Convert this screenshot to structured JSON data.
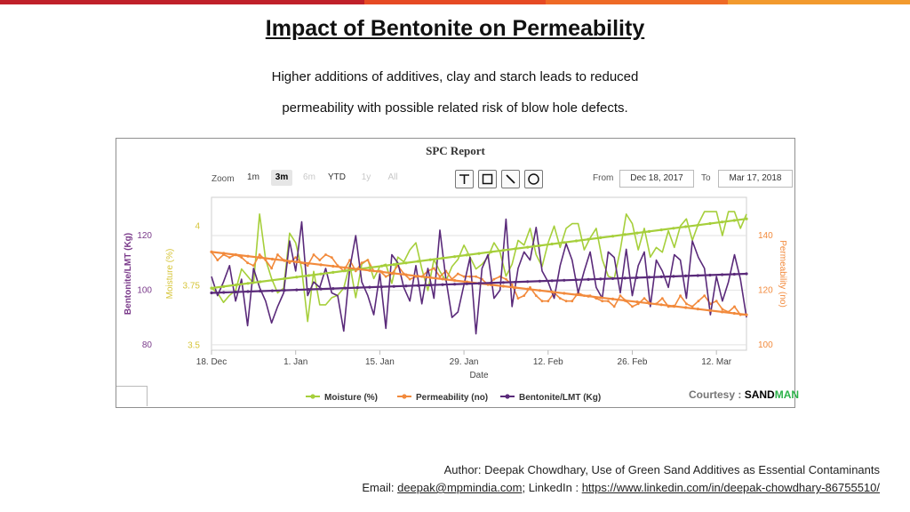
{
  "slide": {
    "title": "Impact of Bentonite on Permeability",
    "subtitle_line1": "Higher additions of additives, clay and starch leads to reduced",
    "subtitle_line2": "permeability with possible related risk of blow hole defects.",
    "courtesy_label": "Courtesy :",
    "courtesy_brand_a": "SAND",
    "courtesy_brand_b": "MAN",
    "author_line": "Author: Deepak Chowdhary, Use of Green Sand Additives as Essential Contaminants",
    "email_label": "Email: ",
    "email": "deepak@mpmindia.com",
    "linkedin_label": "; LinkedIn : ",
    "linkedin_url": "https://www.linkedin.com/in/deepak-chowdhary-86755510/",
    "colors": {
      "moisture": "#a6cf3b",
      "permeability": "#f28a3c",
      "bentonite": "#5a2a7a",
      "bentonite_axis": "#7a3a8a",
      "moisture_axis": "#d6c53a",
      "permeability_axis": "#f28a3c"
    }
  },
  "controls": {
    "zoom_label": "Zoom",
    "zoom_options": [
      "1m",
      "3m",
      "6m",
      "YTD",
      "1y",
      "All"
    ],
    "zoom_selected": "3m",
    "tools": [
      "line-tool-icon",
      "rectangle-tool-icon",
      "diagonal-line-icon",
      "circle-tool-icon"
    ],
    "from_label": "From",
    "from_value": "Dec 18, 2017",
    "to_label": "To",
    "to_value": "Mar 17, 2018"
  },
  "chart_data": {
    "type": "line",
    "title": "SPC Report",
    "xlabel": "Date",
    "x_ticks": [
      "18. Dec",
      "1. Jan",
      "15. Jan",
      "29. Jan",
      "12. Feb",
      "26. Feb",
      "12. Mar"
    ],
    "x_range_days": [
      0,
      89
    ],
    "legend": [
      "Moisture (%)",
      "Permeability (no)",
      "Bentonite/LMT (Kg)"
    ],
    "legend_position": "bottom-center",
    "axes": {
      "bentonite": {
        "label": "Bentonite/LMT (Kg)",
        "ticks": [
          80,
          100,
          120
        ],
        "range": [
          78,
          134
        ],
        "side": "left-outer"
      },
      "moisture": {
        "label": "Moisture (%)",
        "ticks": [
          "3.5",
          "3.75",
          "4"
        ],
        "range": [
          3.48,
          4.12
        ],
        "side": "left-inner"
      },
      "permeability": {
        "label": "Permeability (no)",
        "ticks": [
          100,
          120,
          140
        ],
        "range": [
          98,
          154
        ],
        "side": "right"
      }
    },
    "series": [
      {
        "name": "Moisture (%)",
        "axis": "moisture",
        "values": [
          3.74,
          3.72,
          3.68,
          3.71,
          3.73,
          3.82,
          3.79,
          3.76,
          4.05,
          3.86,
          3.78,
          3.72,
          3.74,
          3.97,
          3.93,
          3.82,
          3.6,
          3.81,
          3.67,
          3.67,
          3.7,
          3.71,
          3.74,
          3.84,
          3.7,
          3.84,
          3.86,
          3.78,
          3.83,
          3.84,
          3.76,
          3.87,
          3.85,
          3.9,
          3.93,
          3.82,
          3.73,
          3.86,
          3.81,
          3.77,
          3.83,
          3.86,
          3.92,
          3.87,
          3.82,
          3.84,
          3.87,
          3.93,
          3.89,
          3.79,
          3.84,
          3.94,
          3.92,
          3.99,
          3.88,
          3.83,
          3.93,
          4.0,
          3.91,
          3.99,
          4.01,
          4.01,
          3.9,
          3.95,
          3.99,
          3.86,
          3.79,
          3.78,
          3.9,
          4.05,
          4.01,
          3.9,
          3.99,
          3.87,
          3.91,
          3.89,
          3.98,
          3.91,
          4.0,
          4.03,
          3.94,
          4.01,
          4.06,
          4.06,
          4.06,
          3.96,
          4.06,
          4.06,
          3.99,
          4.05
        ]
      },
      {
        "name": "Permeability (no)",
        "axis": "permeability",
        "values": [
          134,
          131,
          133,
          132,
          133,
          132,
          130,
          129,
          133,
          131,
          128,
          133,
          131,
          130,
          132,
          130,
          129,
          133,
          131,
          133,
          132,
          129,
          127,
          131,
          127,
          130,
          131,
          127,
          127,
          125,
          126,
          129,
          126,
          124,
          125,
          125,
          127,
          128,
          125,
          127,
          124,
          126,
          125,
          125,
          125,
          124,
          122,
          124,
          125,
          124,
          122,
          117,
          118,
          121,
          118,
          116,
          116,
          119,
          117,
          116,
          116,
          119,
          118,
          118,
          117,
          116,
          116,
          114,
          118,
          116,
          114,
          115,
          117,
          115,
          115,
          117,
          114,
          114,
          118,
          115,
          114,
          116,
          118,
          115,
          116,
          113,
          112,
          114,
          111,
          111
        ]
      },
      {
        "name": "Bentonite/LMT (Kg)",
        "axis": "bentonite",
        "values": [
          105,
          98,
          103,
          109,
          96,
          104,
          87,
          108,
          101,
          96,
          88,
          94,
          99,
          118,
          107,
          125,
          98,
          103,
          101,
          108,
          99,
          98,
          85,
          108,
          120,
          103,
          98,
          91,
          106,
          86,
          113,
          110,
          101,
          96,
          109,
          95,
          108,
          97,
          122,
          104,
          90,
          92,
          102,
          112,
          84,
          108,
          113,
          97,
          100,
          126,
          94,
          108,
          114,
          111,
          123,
          107,
          103,
          97,
          109,
          117,
          111,
          99,
          107,
          114,
          101,
          97,
          114,
          112,
          99,
          115,
          98,
          109,
          114,
          94,
          111,
          107,
          101,
          113,
          111,
          97,
          118,
          112,
          108,
          91,
          105,
          96,
          103,
          113,
          104,
          90
        ]
      },
      {
        "name": "Moisture trend",
        "axis": "moisture",
        "trend": true,
        "values": [
          3.74,
          4.03
        ]
      },
      {
        "name": "Permeability trend",
        "axis": "permeability",
        "trend": true,
        "values": [
          134,
          111
        ]
      },
      {
        "name": "Bentonite trend",
        "axis": "bentonite",
        "trend": true,
        "values": [
          99,
          106
        ]
      }
    ]
  }
}
